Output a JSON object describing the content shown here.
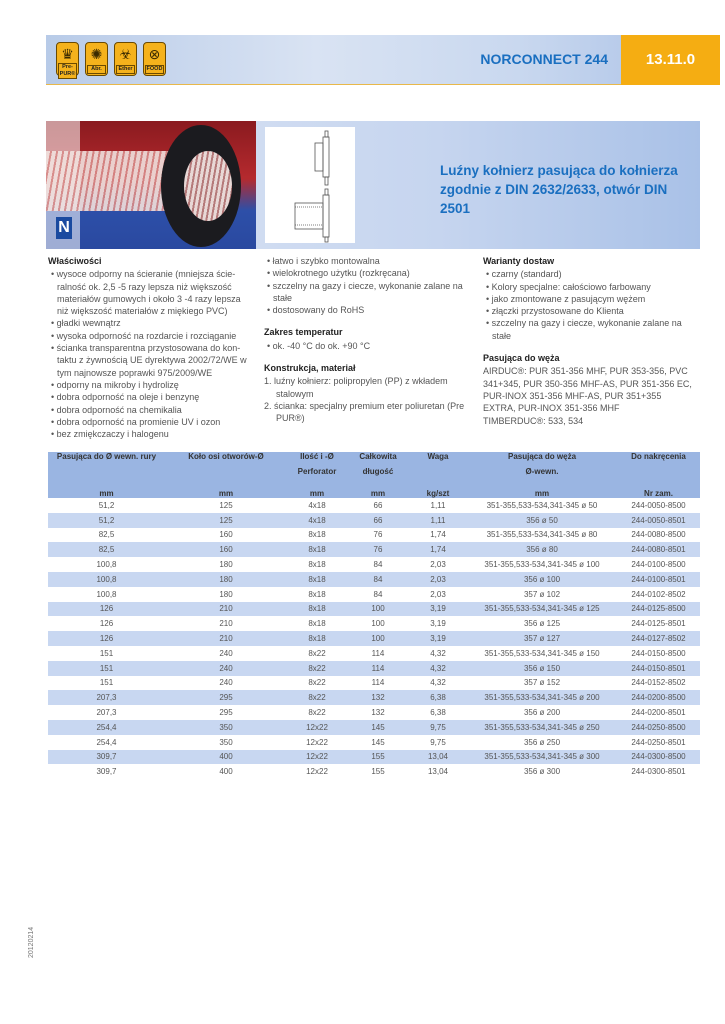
{
  "header": {
    "badges": [
      {
        "label": "Pre-PUR®",
        "icon": "crown-icon"
      },
      {
        "label": "Abr.",
        "icon": "abrasion-icon"
      },
      {
        "label": "Ether",
        "icon": "biohazard-icon"
      },
      {
        "label": "FOOD",
        "icon": "food-icon"
      }
    ],
    "product": "NORCONNECT 244",
    "code": "13.11.0"
  },
  "hero": {
    "title": "Luźny kołnierz pasująca do kołnierza zgodnie z DIN 2632/2633, otwór DIN 2501",
    "logo": "N"
  },
  "properties": {
    "heading": "Właściwości",
    "items": [
      "wysoce odporny na ścieranie (mniejsza ście-ralność ok. 2,5 -5 razy lepsza niż większość materiałów gumowych i około 3 -4 razy lepsza niż większość materiałów z miękiego PVC)",
      "gładki wewnątrz",
      "wysoka odporność na rozdarcie i rozciąganie",
      "ścianka transparentna przystosowana do kon-taktu z żywnością UE dyrektywa 2002/72/WE w tym najnowsze poprawki 975/2009/WE",
      "odporny na mikroby i hydrolizę",
      "dobra odporność na oleje i benzynę",
      "dobra odporność na chemikalia",
      "dobra odporność na promienie UV i ozon",
      "bez zmiękczaczy i halogenu"
    ]
  },
  "middle": {
    "items": [
      "łatwo i szybko montowalna",
      "wielokrotnego użytku (rozkręcana)",
      "szczelny na gazy i ciecze, wykonanie zalane na stałe",
      "dostosowany do RoHS"
    ],
    "temp_heading": "Zakres temperatur",
    "temp_items": [
      "ok. -40 °C do ok. +90 °C"
    ],
    "constr_heading": "Konstrukcja, materiał",
    "constr_items": [
      "1. luźny kołnierz: polipropylen (PP) z wkładem stalowym",
      "2. ścianka: specjalny premium eter poliuretan (Pre PUR®)"
    ]
  },
  "right": {
    "variants_heading": "Warianty dostaw",
    "variants": [
      "czarny (standard)",
      "Kolory specjalne: całościowo farbowany",
      "jako zmontowane z pasującym wężem",
      "złączki przystosowane do Klienta",
      "szczelny na gazy i ciecze, wykonanie zalane na stałe"
    ],
    "hose_heading": "Pasująca do węża",
    "hose_text": "AIRDUC®: PUR 351-356 MHF, PUR 353-356, PVC 341+345, PUR 350-356 MHF-AS, PUR 351-356 EC, PUR-INOX 351-356 MHF-AS, PUR 351+355 EXTRA, PUR-INOX 351-356 MHF",
    "hose_text2": "TIMBERDUC®: 533, 534"
  },
  "table": {
    "header1": [
      "Pasująca do Ø wewn. rury",
      "Koło osi otworów-Ø",
      "Ilość i -Ø",
      "Całkowita",
      "Waga",
      "Pasująca do węża",
      "Do nakręcenia"
    ],
    "header2": [
      "",
      "",
      "Perforator",
      "długość",
      "",
      "Ø-wewn.",
      ""
    ],
    "units": [
      "mm",
      "mm",
      "mm",
      "mm",
      "kg/szt",
      "mm",
      "Nr zam."
    ],
    "rows": [
      [
        "51,2",
        "125",
        "4x18",
        "66",
        "1,11",
        "351-355,533-534,341-345 ø 50",
        "244-0050-8500"
      ],
      [
        "51,2",
        "125",
        "4x18",
        "66",
        "1,11",
        "356 ø 50",
        "244-0050-8501"
      ],
      [
        "82,5",
        "160",
        "8x18",
        "76",
        "1,74",
        "351-355,533-534,341-345 ø 80",
        "244-0080-8500"
      ],
      [
        "82,5",
        "160",
        "8x18",
        "76",
        "1,74",
        "356 ø 80",
        "244-0080-8501"
      ],
      [
        "100,8",
        "180",
        "8x18",
        "84",
        "2,03",
        "351-355,533-534,341-345 ø 100",
        "244-0100-8500"
      ],
      [
        "100,8",
        "180",
        "8x18",
        "84",
        "2,03",
        "356 ø 100",
        "244-0100-8501"
      ],
      [
        "100,8",
        "180",
        "8x18",
        "84",
        "2,03",
        "357 ø 102",
        "244-0102-8502"
      ],
      [
        "126",
        "210",
        "8x18",
        "100",
        "3,19",
        "351-355,533-534,341-345 ø 125",
        "244-0125-8500"
      ],
      [
        "126",
        "210",
        "8x18",
        "100",
        "3,19",
        "356 ø 125",
        "244-0125-8501"
      ],
      [
        "126",
        "210",
        "8x18",
        "100",
        "3,19",
        "357 ø 127",
        "244-0127-8502"
      ],
      [
        "151",
        "240",
        "8x22",
        "114",
        "4,32",
        "351-355,533-534,341-345 ø 150",
        "244-0150-8500"
      ],
      [
        "151",
        "240",
        "8x22",
        "114",
        "4,32",
        "356 ø 150",
        "244-0150-8501"
      ],
      [
        "151",
        "240",
        "8x22",
        "114",
        "4,32",
        "357 ø 152",
        "244-0152-8502"
      ],
      [
        "207,3",
        "295",
        "8x22",
        "132",
        "6,38",
        "351-355,533-534,341-345 ø 200",
        "244-0200-8500"
      ],
      [
        "207,3",
        "295",
        "8x22",
        "132",
        "6,38",
        "356 ø 200",
        "244-0200-8501"
      ],
      [
        "254,4",
        "350",
        "12x22",
        "145",
        "9,75",
        "351-355,533-534,341-345 ø 250",
        "244-0250-8500"
      ],
      [
        "254,4",
        "350",
        "12x22",
        "145",
        "9,75",
        "356 ø 250",
        "244-0250-8501"
      ],
      [
        "309,7",
        "400",
        "12x22",
        "155",
        "13,04",
        "351-355,533-534,341-345 ø 300",
        "244-0300-8500"
      ],
      [
        "309,7",
        "400",
        "12x22",
        "155",
        "13,04",
        "356 ø 300",
        "244-0300-8501"
      ]
    ]
  },
  "footer": {
    "date_code": "20120214"
  },
  "colors": {
    "accent": "#1a6fc0",
    "orange": "#f5ad12",
    "table_header": "#9ab5e2",
    "row_shade": "#c8d7f1"
  }
}
